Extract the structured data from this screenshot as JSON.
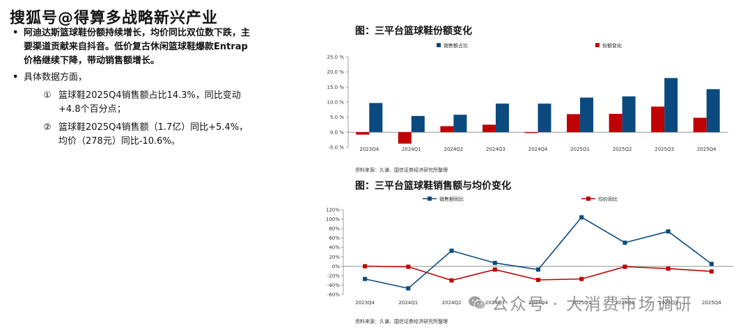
{
  "watermark_top": "搜狐号@得算多战略新兴产业",
  "watermark_bottom": "公众号 · 大消费市场调研",
  "colors": {
    "blue": "#0b4a7f",
    "red": "#c00000",
    "axis": "#888888"
  },
  "left_text": {
    "bullet1": "阿迪达斯篮球鞋份额持续增长，均价同比双位数下跌，主要渠道贡献来自抖音。低价复古休闲篮球鞋爆款Entrap价格继续下降，带动销售额增长。",
    "bullet2": "具体数据方面，",
    "sub1_num": "①",
    "sub1": "篮球鞋2025Q4销售额占比14.3%，同比变动+4.8个百分点；",
    "sub2_num": "②",
    "sub2": "篮球鞋2025Q4销售额（1.7亿）同比+5.4%，均价（278元）同比-10.6%。"
  },
  "chart_data": [
    {
      "type": "bar",
      "title": "图：三平台篮球鞋份额变化",
      "source": "资料来源：久谦、国信证券经济研究所整理",
      "categories": [
        "2023Q4",
        "2024Q1",
        "2024Q2",
        "2024Q3",
        "2024Q4",
        "2025Q1",
        "2025Q2",
        "2025Q3",
        "2025Q4"
      ],
      "series": [
        {
          "name": "销售额占比",
          "values": [
            9.7,
            5.4,
            5.8,
            9.5,
            9.5,
            11.5,
            11.9,
            18.0,
            14.3
          ]
        },
        {
          "name": "份额变化",
          "values": [
            -0.8,
            -3.8,
            2.0,
            2.5,
            -0.3,
            6.0,
            6.1,
            8.5,
            4.8
          ]
        }
      ],
      "yticks": [
        "-5.0 %",
        "0.0 %",
        "5.0 %",
        "10.0 %",
        "15.0 %",
        "20.0 %",
        "25.0 %"
      ],
      "ylim": [
        -5,
        25
      ],
      "legend_position": "top"
    },
    {
      "type": "line",
      "title": "图：三平台篮球鞋销售额与均价变化",
      "source": "资料来源：久谦、国信证券经济研究所整理",
      "categories": [
        "2023Q4",
        "2024Q1",
        "2024Q2",
        "2024Q3",
        "2024Q4",
        "2025Q1",
        "2025Q2",
        "2025Q3",
        "2025Q4"
      ],
      "series": [
        {
          "name": "销售额同比",
          "values": [
            -27,
            -47,
            33,
            7,
            -7,
            104,
            50,
            74,
            5
          ]
        },
        {
          "name": "均价同比",
          "values": [
            0,
            -1,
            -30,
            -7,
            -29,
            -27,
            -1,
            -5,
            -11
          ]
        }
      ],
      "yticks": [
        "-60%",
        "-40%",
        "-20%",
        "0%",
        "20%",
        "40%",
        "60%",
        "80%",
        "100%",
        "120%"
      ],
      "ylim": [
        -60,
        120
      ],
      "legend_position": "top"
    }
  ]
}
